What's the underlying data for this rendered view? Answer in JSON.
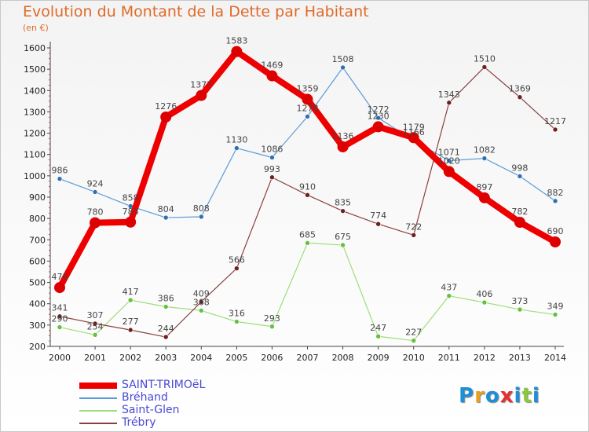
{
  "title": "Evolution du Montant de la Dette par Habitant",
  "subtitle": "(en €)",
  "logo": "Proxiti",
  "logo_colors": [
    "#1d8fd8",
    "#e8a020",
    "#1d8fd8",
    "#e63030",
    "#1d8fd8",
    "#8dc63f",
    "#1d8fd8"
  ],
  "chart_data": {
    "type": "line",
    "x": [
      "2000",
      "2001",
      "2002",
      "2003",
      "2004",
      "2005",
      "2006",
      "2007",
      "2008",
      "2009",
      "2010",
      "2011",
      "2012",
      "2013",
      "2014"
    ],
    "ylim": [
      200,
      1600
    ],
    "yticks": [
      200,
      300,
      400,
      500,
      600,
      700,
      800,
      900,
      1000,
      1100,
      1200,
      1300,
      1400,
      1500,
      1600
    ],
    "grid": false,
    "legend_position": "bottom-left",
    "series": [
      {
        "name": "Bréhand",
        "color": "#5b9bd5",
        "point_color": "#2f6fb3",
        "width": 1.2,
        "marker_r": 3,
        "values": [
          986,
          924,
          858,
          804,
          808,
          1130,
          1086,
          1278,
          1508,
          1272,
          1166,
          1071,
          1082,
          998,
          882
        ]
      },
      {
        "name": "Saint-Glen",
        "color": "#9ede7a",
        "point_color": "#66c040",
        "width": 1.2,
        "marker_r": 3,
        "values": [
          290,
          254,
          417,
          386,
          368,
          316,
          293,
          685,
          675,
          247,
          227,
          437,
          406,
          373,
          349
        ]
      },
      {
        "name": "Trébry",
        "color": "#8a4040",
        "point_color": "#6e1f1f",
        "width": 1.2,
        "marker_r": 3,
        "values": [
          341,
          307,
          277,
          244,
          409,
          566,
          993,
          910,
          835,
          774,
          722,
          1343,
          1510,
          1369,
          1217
        ]
      },
      {
        "name": "SAINT-TRIMOëL",
        "color": "#ee0000",
        "point_color": "#dd0000",
        "width": 8,
        "marker_r": 7,
        "values": [
          476,
          780,
          783,
          1276,
          1377,
          1583,
          1469,
          1359,
          1136,
          1230,
          1179,
          1020,
          897,
          782,
          690
        ]
      }
    ],
    "labels": [
      [
        "986",
        "924",
        "858",
        "804",
        "808",
        "1130",
        "1086",
        "1278",
        "1508",
        "1272",
        "1166",
        "1071",
        "1082",
        "998",
        "882"
      ],
      [
        "290",
        "254",
        "417",
        "386",
        "368",
        "316",
        "293",
        "685",
        "675",
        "247",
        "227",
        "437",
        "406",
        "373",
        "349"
      ],
      [
        "341",
        "307",
        "277",
        "244",
        "409",
        "566",
        "993",
        "910",
        "835",
        "774",
        "722",
        "1343",
        "1510",
        "1369",
        "1217"
      ],
      [
        "476",
        "780",
        "783",
        "1276",
        "1377",
        "1583",
        "1469",
        "1359",
        "1136",
        "1230",
        "1179",
        "1020",
        "897",
        "782",
        "690"
      ]
    ]
  }
}
